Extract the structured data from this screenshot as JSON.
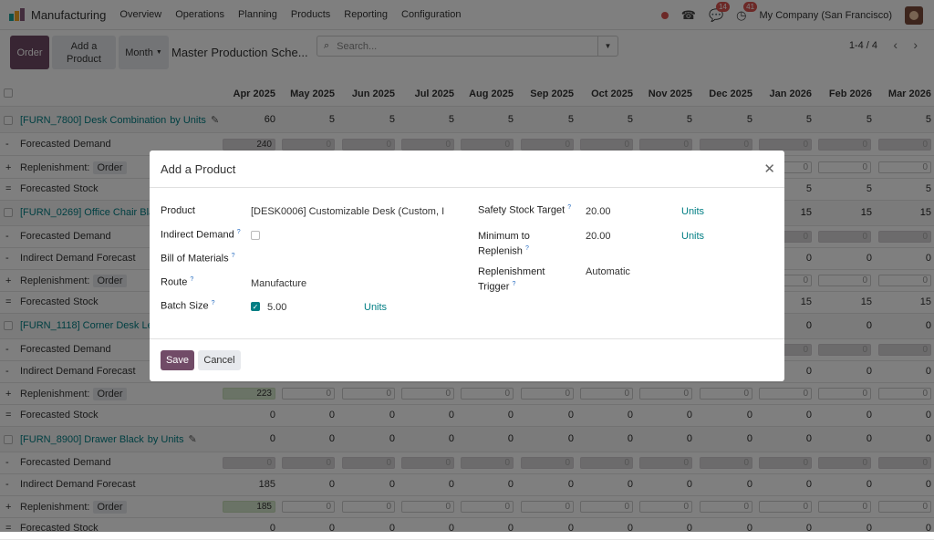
{
  "nav": {
    "app_name": "Manufacturing",
    "menu": [
      "Overview",
      "Operations",
      "Planning",
      "Products",
      "Reporting",
      "Configuration"
    ],
    "chat_count": "14",
    "activity_count": "41",
    "company": "My Company (San Francisco)"
  },
  "control": {
    "order_label": "Order",
    "add_product_label": "Add a Product",
    "period_label": "Month",
    "title": "Master Production Sche...",
    "search_placeholder": "Search...",
    "pager": "1-4 / 4"
  },
  "grid": {
    "months": [
      "Apr 2025",
      "May 2025",
      "Jun 2025",
      "Jul 2025",
      "Aug 2025",
      "Sep 2025",
      "Oct 2025",
      "Nov 2025",
      "Dec 2025",
      "Jan 2026",
      "Feb 2026",
      "Mar 2026"
    ],
    "order_tag": "Order",
    "unit_suffix": "by Units",
    "rows": [
      {
        "type": "product",
        "name": "[FURN_7800] Desk Combination",
        "values": [
          "60",
          "5",
          "5",
          "5",
          "5",
          "5",
          "5",
          "5",
          "5",
          "5",
          "5",
          "5"
        ]
      },
      {
        "type": "line",
        "sign": "-",
        "label": "Forecasted Demand",
        "style": "grey",
        "values": [
          "240",
          "0",
          "0",
          "0",
          "0",
          "0",
          "0",
          "0",
          "0",
          "0",
          "0",
          "0"
        ]
      },
      {
        "type": "line",
        "sign": "+",
        "label": "Replenishment:",
        "order": true,
        "style": "white",
        "values": [
          "",
          "",
          "",
          "",
          "",
          "",
          "",
          "",
          "",
          "0",
          "0",
          "0"
        ]
      },
      {
        "type": "line",
        "sign": "=",
        "label": "Forecasted Stock",
        "style": "text",
        "values": [
          "",
          "",
          "",
          "",
          "",
          "",
          "",
          "",
          "",
          "5",
          "5",
          "5"
        ]
      },
      {
        "type": "product",
        "name": "[FURN_0269] Office Chair Blac",
        "values": [
          "",
          "",
          "",
          "",
          "",
          "",
          "",
          "",
          "",
          "15",
          "15",
          "15"
        ]
      },
      {
        "type": "line",
        "sign": "-",
        "label": "Forecasted Demand",
        "style": "grey",
        "values": [
          "",
          "",
          "",
          "",
          "",
          "",
          "",
          "",
          "",
          "0",
          "0",
          "0"
        ]
      },
      {
        "type": "line",
        "sign": "-",
        "label": "Indirect Demand Forecast",
        "style": "text",
        "values": [
          "",
          "",
          "",
          "",
          "",
          "",
          "",
          "",
          "",
          "0",
          "0",
          "0"
        ]
      },
      {
        "type": "line",
        "sign": "+",
        "label": "Replenishment:",
        "order": true,
        "style": "white",
        "values": [
          "",
          "",
          "",
          "",
          "",
          "",
          "",
          "",
          "",
          "0",
          "0",
          "0"
        ]
      },
      {
        "type": "line",
        "sign": "=",
        "label": "Forecasted Stock",
        "style": "text",
        "values": [
          "",
          "",
          "",
          "",
          "",
          "",
          "",
          "",
          "",
          "15",
          "15",
          "15"
        ]
      },
      {
        "type": "product",
        "name": "[FURN_1118] Corner Desk Left",
        "values": [
          "",
          "",
          "",
          "",
          "",
          "",
          "",
          "",
          "",
          "0",
          "0",
          "0"
        ]
      },
      {
        "type": "line",
        "sign": "-",
        "label": "Forecasted Demand",
        "style": "grey",
        "values": [
          "",
          "",
          "",
          "",
          "",
          "",
          "",
          "",
          "",
          "0",
          "0",
          "0"
        ]
      },
      {
        "type": "line",
        "sign": "-",
        "label": "Indirect Demand Forecast",
        "style": "text",
        "values": [
          "",
          "",
          "",
          "",
          "",
          "",
          "",
          "",
          "",
          "0",
          "0",
          "0"
        ]
      },
      {
        "type": "line",
        "sign": "+",
        "label": "Replenishment:",
        "order": true,
        "style": "white",
        "first": "green",
        "values": [
          "223",
          "0",
          "0",
          "0",
          "0",
          "0",
          "0",
          "0",
          "0",
          "0",
          "0",
          "0"
        ]
      },
      {
        "type": "line",
        "sign": "=",
        "label": "Forecasted Stock",
        "style": "text",
        "values": [
          "0",
          "0",
          "0",
          "0",
          "0",
          "0",
          "0",
          "0",
          "0",
          "0",
          "0",
          "0"
        ]
      },
      {
        "type": "product",
        "name": "[FURN_8900] Drawer Black",
        "edit": true,
        "values": [
          "0",
          "0",
          "0",
          "0",
          "0",
          "0",
          "0",
          "0",
          "0",
          "0",
          "0",
          "0"
        ]
      },
      {
        "type": "line",
        "sign": "-",
        "label": "Forecasted Demand",
        "style": "grey",
        "values": [
          "0",
          "0",
          "0",
          "0",
          "0",
          "0",
          "0",
          "0",
          "0",
          "0",
          "0",
          "0"
        ]
      },
      {
        "type": "line",
        "sign": "-",
        "label": "Indirect Demand Forecast",
        "style": "text",
        "values": [
          "185",
          "0",
          "0",
          "0",
          "0",
          "0",
          "0",
          "0",
          "0",
          "0",
          "0",
          "0"
        ]
      },
      {
        "type": "line",
        "sign": "+",
        "label": "Replenishment:",
        "order": true,
        "style": "white",
        "first": "green",
        "values": [
          "185",
          "0",
          "0",
          "0",
          "0",
          "0",
          "0",
          "0",
          "0",
          "0",
          "0",
          "0"
        ]
      },
      {
        "type": "line",
        "sign": "=",
        "label": "Forecasted Stock",
        "style": "text",
        "values": [
          "0",
          "0",
          "0",
          "0",
          "0",
          "0",
          "0",
          "0",
          "0",
          "0",
          "0",
          "0"
        ]
      }
    ]
  },
  "modal": {
    "title": "Add a Product",
    "product_label": "Product",
    "product_value": "[DESK0006] Customizable Desk (Custom, I",
    "indirect_label": "Indirect Demand",
    "bom_label": "Bill of Materials",
    "route_label": "Route",
    "route_value": "Manufacture",
    "batch_label": "Batch Size",
    "batch_value": "5.00",
    "batch_unit": "Units",
    "safety_label": "Safety Stock Target",
    "safety_value": "20.00",
    "safety_unit": "Units",
    "min_label_1": "Minimum to",
    "min_label_2": "Replenish",
    "min_value": "20.00",
    "min_unit": "Units",
    "trigger_label_1": "Replenishment",
    "trigger_label_2": "Trigger",
    "trigger_value": "Automatic",
    "help_mark": "?",
    "save_label": "Save",
    "cancel_label": "Cancel"
  }
}
